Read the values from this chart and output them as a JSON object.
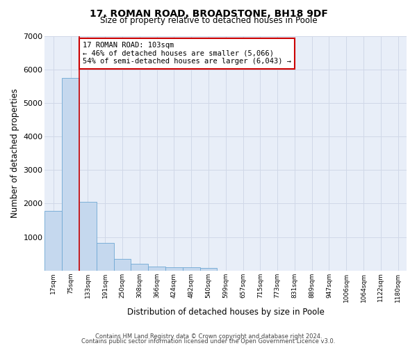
{
  "title1": "17, ROMAN ROAD, BROADSTONE, BH18 9DF",
  "title2": "Size of property relative to detached houses in Poole",
  "xlabel": "Distribution of detached houses by size in Poole",
  "ylabel": "Number of detached properties",
  "bin_labels": [
    "17sqm",
    "75sqm",
    "133sqm",
    "191sqm",
    "250sqm",
    "308sqm",
    "366sqm",
    "424sqm",
    "482sqm",
    "540sqm",
    "599sqm",
    "657sqm",
    "715sqm",
    "773sqm",
    "831sqm",
    "889sqm",
    "947sqm",
    "1006sqm",
    "1064sqm",
    "1122sqm",
    "1180sqm"
  ],
  "bar_heights": [
    1780,
    5750,
    2060,
    820,
    340,
    200,
    120,
    100,
    95,
    75,
    0,
    0,
    0,
    0,
    0,
    0,
    0,
    0,
    0,
    0,
    0
  ],
  "bar_color": "#c5d8ee",
  "bar_edge_color": "#6fa8d4",
  "grid_color": "#d0d8e8",
  "background_color": "#e8eef8",
  "red_line_x": 1.5,
  "annotation_text": "17 ROMAN ROAD: 103sqm\n← 46% of detached houses are smaller (5,066)\n54% of semi-detached houses are larger (6,043) →",
  "annotation_box_color": "#ffffff",
  "annotation_box_edge": "#cc0000",
  "ylim": [
    0,
    7000
  ],
  "yticks": [
    0,
    1000,
    2000,
    3000,
    4000,
    5000,
    6000,
    7000
  ],
  "footer1": "Contains HM Land Registry data © Crown copyright and database right 2024.",
  "footer2": "Contains public sector information licensed under the Open Government Licence v3.0."
}
